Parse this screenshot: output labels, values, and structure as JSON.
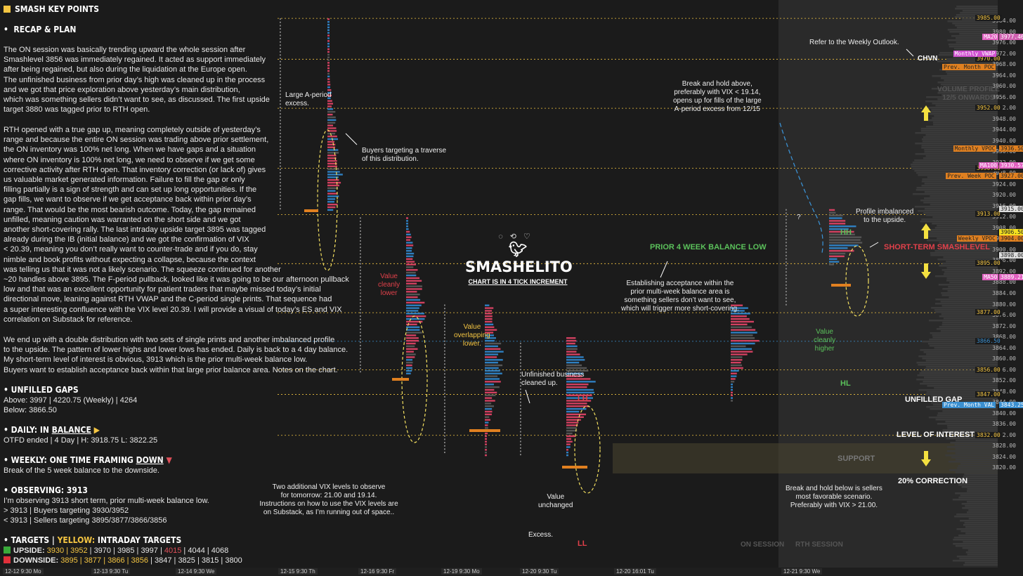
{
  "left": {
    "title": "SMASH KEY POINTS",
    "recap_header": "RECAP & PLAN",
    "para1": [
      "The ON session was basically trending upward the whole session after",
      "Smashlevel 3856 was immediately regained. It acted as support immediately",
      "after being regained, but also during the liquidation at the Europe open.",
      "The unfinished business from prior day’s high was cleaned up in the process",
      "and we got that price exploration above yesterday’s main distribution,",
      "which was something sellers didn’t want to see, as discussed. The first upside",
      "target 3880 was tagged prior to RTH open."
    ],
    "para2": [
      "RTH opened with a true gap up, meaning completely outside of yesterday’s",
      "range and because the entire ON session was trading above prior settlement,",
      "the ON inventory was 100% net long. When we have gaps and a situation",
      "where ON inventory is 100% net long, we need to observe if we get some",
      "corrective activity after RTH open. That inventory correction (or lack of) gives",
      "us valuable market generated information. Failure to fill the gap or only",
      "filling partially is a sign of strength and can set up long opportunities. If the",
      "gap fills, we want to observe if we get acceptance back within prior day’s",
      "range. That would be the most bearish outcome. Today, the gap remained",
      "unfilled, meaning caution was warranted on the short side and we got",
      "another short-covering rally. The last intraday upside target 3895 was tagged",
      "already during the IB (initial balance) and we got the confirmation of VIX",
      "< 20.39, meaning you don’t really want to counter-trade and if you do, stay",
      "nimble and book profits without expecting a collapse, because the context",
      "was telling us that it was not a likely scenario. The squeeze continued for another",
      "~20 handles above 3895. The F-period pullback, looked like it was going to be our afternoon pullback",
      "low and that was an excellent opportunity for patient traders that maybe missed today’s initial",
      "directional move, leaning against RTH VWAP and the C-period single prints. That sequence had",
      "a super interesting confluence with the VIX level 20.39. I will provide a visual of today’s ES and VIX",
      "correlation on Substack for reference."
    ],
    "para3": [
      "We end up with a double distribution with two sets of single prints and another imbalanced profile",
      "to the upside. The pattern of lower highs and lower lows has ended. Daily is back to a 4 day balance.",
      "My short-term level of interest is obvious, 3913 which is the prior multi-week balance low.",
      "Buyers want to establish acceptance back within that large prior balance area. Notes on the chart."
    ],
    "gaps_header": "UNFILLED GAPS",
    "gaps_above": "Above: 3997 | 4220.75 (Weekly) | 4264",
    "gaps_below": "Below: 3866.50",
    "daily_header_prefix": "DAILY: IN ",
    "daily_header_word": "BALANCE",
    "daily_line": "OTFD ended | 4 Day | H: 3918.75 L: 3822.25",
    "weekly_header_prefix": "WEEKLY: ONE TIME FRAMING ",
    "weekly_header_word": "DOWN",
    "weekly_line": "Break of the 5 week balance to the downside.",
    "observing_header": "OBSERVING: 3913",
    "observing_lines": [
      "I’m observing 3913 short term, prior multi-week balance low.",
      "> 3913 | Buyers targeting 3930/3952",
      "< 3913 | Sellers targeting 3895/3877/3866/3856"
    ],
    "targets_header_a": "TARGETS  |  ",
    "targets_header_b": "YELLOW:",
    "targets_header_c": " INTRADAY TARGETS",
    "upside_label": "UPSIDE:",
    "upside_yellow": " 3930 | 3952",
    "upside_white1": " | 3970 | 3985 | 3997 | ",
    "upside_red": "4015",
    "upside_white2": " | 4044 | 4068",
    "downside_label": "DOWNSIDE:",
    "downside_yellow": " 3895 | 3877 | 3866 | 3856",
    "downside_white": " | 3847 | 3825 | 3815 | 3800"
  },
  "chart": {
    "brand": "SMASHELITO",
    "subtitle": "CHART IS IN 4 TICK INCREMENT",
    "price_axis": [
      "3984.00",
      "3980.00",
      "3976.00",
      "3972.00",
      "3968.00",
      "3964.00",
      "3960.00",
      "3956.00",
      "3952.00",
      "3948.00",
      "3944.00",
      "3940.00",
      "3936.00",
      "3932.00",
      "3928.00",
      "3924.00",
      "3920.00",
      "3916.00",
      "3912.00",
      "3908.00",
      "3904.00",
      "3900.00",
      "3896.00",
      "3892.00",
      "3888.00",
      "3884.00",
      "3880.00",
      "3876.00",
      "3872.00",
      "3868.00",
      "3864.00",
      "3860.00",
      "3856.00",
      "3852.00",
      "3848.00",
      "3844.00",
      "3840.00",
      "3836.00",
      "3832.00",
      "3828.00",
      "3824.00",
      "3820.00"
    ],
    "levels": [
      {
        "price": 3985,
        "label": "3985.00",
        "color": "#f4c542"
      },
      {
        "price": 3970,
        "label": "3970.00",
        "color": "#f4c542"
      },
      {
        "price": 3952,
        "label": "3952.00",
        "color": "#f4c542"
      },
      {
        "price": 3930,
        "label": "3930.00",
        "color": "#f4c542"
      },
      {
        "price": 3913,
        "label": "3913.00",
        "color": "#f4c542"
      },
      {
        "price": 3895,
        "label": "3895.00",
        "color": "#f4c542"
      },
      {
        "price": 3877,
        "label": "3877.00",
        "color": "#f4c542"
      },
      {
        "price": 3866.5,
        "label": "3866.50",
        "color": "#3a8fd0"
      },
      {
        "price": 3856,
        "label": "3856.00",
        "color": "#f4c542"
      },
      {
        "price": 3847,
        "label": "3847.00",
        "color": "#f4c542"
      },
      {
        "price": 3832,
        "label": "3832.00",
        "color": "#f4c542"
      }
    ],
    "tags": [
      {
        "text": "MA20",
        "price": 3978,
        "bg": "#e060c0",
        "fg": "#fff"
      },
      {
        "text": "3977.46",
        "price": 3978,
        "bg": "#d060b0",
        "fg": "#fff"
      },
      {
        "text": "Monthly VWAP",
        "price": 3972,
        "bg": "#d050d0",
        "fg": "#fff"
      },
      {
        "text": "Prev. Month POC",
        "price": 3967,
        "bg": "#e08020",
        "fg": "#222"
      },
      {
        "text": "Monthly VPOC",
        "price": 3937,
        "bg": "#e08020",
        "fg": "#222"
      },
      {
        "text": "3936.50",
        "price": 3937,
        "bg": "#e08020",
        "fg": "#222"
      },
      {
        "text": "MA100",
        "price": 3931,
        "bg": "#e060c0",
        "fg": "#fff"
      },
      {
        "text": "3930.57",
        "price": 3931,
        "bg": "#e060c0",
        "fg": "#fff"
      },
      {
        "text": "Prev. Week POC",
        "price": 3927,
        "bg": "#e08020",
        "fg": "#222"
      },
      {
        "text": "3927.00",
        "price": 3927,
        "bg": "#e08020",
        "fg": "#222"
      },
      {
        "text": "3915.00",
        "price": 3915,
        "bg": "#dddddd",
        "fg": "#222"
      },
      {
        "text": "3906.50",
        "price": 3906.5,
        "bg": "#f4e020",
        "fg": "#222"
      },
      {
        "text": "Weekly VPOC",
        "price": 3904,
        "bg": "#e08020",
        "fg": "#222"
      },
      {
        "text": "3904.00",
        "price": 3904,
        "bg": "#e08020",
        "fg": "#222"
      },
      {
        "text": "3898.00",
        "price": 3898,
        "bg": "#dddddd",
        "fg": "#222"
      },
      {
        "text": "MA50",
        "price": 3890,
        "bg": "#e060c0",
        "fg": "#fff"
      },
      {
        "text": "3889.21",
        "price": 3890,
        "bg": "#e060c0",
        "fg": "#fff"
      },
      {
        "text": "Prev. Month VAL",
        "price": 3843,
        "bg": "#3a8fd0",
        "fg": "#fff"
      },
      {
        "text": "3843.25",
        "price": 3843,
        "bg": "#3a8fd0",
        "fg": "#fff"
      }
    ],
    "x_labels": [
      "12-12  9:30 Mo",
      "12-13  9:30 Tu",
      "12-14  9:30 We",
      "12-15  9:30 Th",
      "12-16  9:30 Fr",
      "12-19  9:30 Mo",
      "12-20  9:30 Tu",
      "12-20  16:01 Tu",
      "12-21  9:30 We"
    ],
    "annotations": {
      "large_a": "Large A-period\nexcess.",
      "buyers_traverse": "Buyers targeting a traverse\nof this distribution.",
      "value_lower": "Value\ncleanly\nlower",
      "value_overlap": "Value\noverlapping\nlower.",
      "unfinished": "Unfinished business\ncleaned up.",
      "lh": "LH",
      "ll": "LL",
      "value_unch": "Value\nunchanged",
      "excess": "Excess.",
      "vix_levels": "Two additional VIX levels to observe\nfor tomorrow: 21.00 and 19.14.\nInstructions on how to use the VIX levels are\non Substack, as I’m running out of space..",
      "prior_balance": "PRIOR 4 WEEK BALANCE LOW",
      "establishing": "Establishing acceptance within the\nprior multi-week balance area is\nsomething sellers don’t want to see,\nwhich will trigger more short-covering.",
      "break_hold_above": "Break and hold above,\npreferably with VIX < 19.14,\nopens up for fills of the large\nA-period excess from 12/15",
      "refer_weekly": "Refer to the Weekly Outlook.",
      "chvn": "CHVN",
      "volume_profile": "VOLUME PROFILE\n12/5 ONWARDS",
      "question": "?",
      "hh": "HH",
      "hl": "HL",
      "profile_imbal": "Profile imbalanced\nto the upside.",
      "short_term": "SHORT-TERM SMASHLEVEL",
      "value_higher": "Value\ncleanly\nhigher",
      "unfilled_gap": "UNFILLED GAP",
      "level_interest": "LEVEL OF INTEREST",
      "support": "SUPPORT",
      "correction": "20% CORRECTION",
      "break_hold_below": "Break and hold below is sellers\nmost favorable scenario.\nPreferably with VIX > 21.00.",
      "on_session": "ON SESSION",
      "rth_session": "RTH SESSION"
    }
  }
}
